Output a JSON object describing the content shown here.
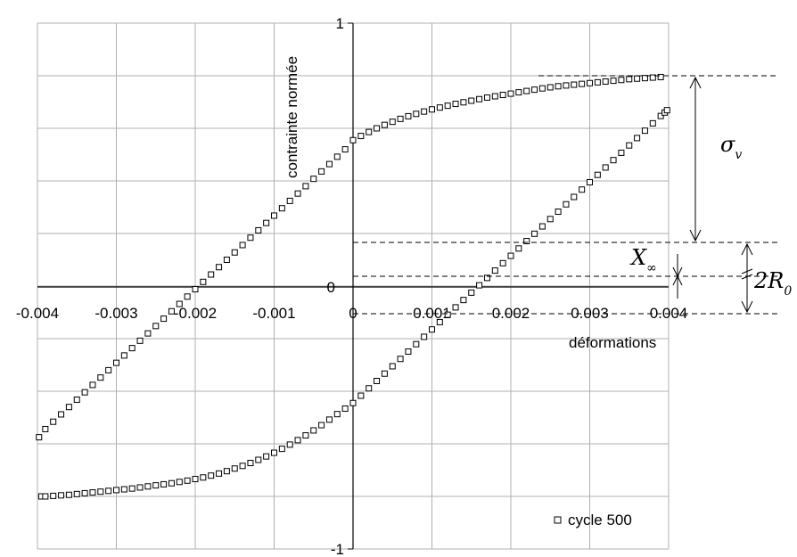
{
  "chart_data": {
    "type": "scatter",
    "xlim": [
      -0.004,
      0.004
    ],
    "ylim": [
      -1,
      1
    ],
    "grid": true,
    "legend_position": "bottom-right",
    "xlabel": "déformations",
    "ylabel": "contrainte normée",
    "x_ticks": [
      "-0.004",
      "-0.003",
      "-0.002",
      "-0.001",
      "0",
      "0.001",
      "0.002",
      "0.003",
      "0.004"
    ],
    "y_ticks": [
      "1",
      "0",
      "-1"
    ],
    "series": [
      {
        "name": "cycle 500",
        "marker": "open-square",
        "points": [
          [
            -0.00395,
            -0.8
          ],
          [
            -0.0039,
            -0.8
          ],
          [
            -0.0038,
            -0.798
          ],
          [
            -0.0037,
            -0.796
          ],
          [
            -0.0036,
            -0.794
          ],
          [
            -0.0035,
            -0.791
          ],
          [
            -0.0034,
            -0.788
          ],
          [
            -0.0033,
            -0.785
          ],
          [
            -0.0032,
            -0.782
          ],
          [
            -0.0031,
            -0.779
          ],
          [
            -0.003,
            -0.776
          ],
          [
            -0.0029,
            -0.773
          ],
          [
            -0.0028,
            -0.77
          ],
          [
            -0.0027,
            -0.766
          ],
          [
            -0.0026,
            -0.762
          ],
          [
            -0.0025,
            -0.758
          ],
          [
            -0.0024,
            -0.754
          ],
          [
            -0.0023,
            -0.75
          ],
          [
            -0.0022,
            -0.745
          ],
          [
            -0.0021,
            -0.74
          ],
          [
            -0.002,
            -0.734
          ],
          [
            -0.0019,
            -0.728
          ],
          [
            -0.0018,
            -0.721
          ],
          [
            -0.0017,
            -0.713
          ],
          [
            -0.0016,
            -0.704
          ],
          [
            -0.0015,
            -0.694
          ],
          [
            -0.0014,
            -0.684
          ],
          [
            -0.0013,
            -0.673
          ],
          [
            -0.0012,
            -0.661
          ],
          [
            -0.0011,
            -0.648
          ],
          [
            -0.001,
            -0.634
          ],
          [
            -0.0009,
            -0.619
          ],
          [
            -0.0008,
            -0.603
          ],
          [
            -0.0007,
            -0.586
          ],
          [
            -0.0006,
            -0.568
          ],
          [
            -0.0005,
            -0.549
          ],
          [
            -0.0004,
            -0.529
          ],
          [
            -0.0003,
            -0.508
          ],
          [
            -0.0002,
            -0.487
          ],
          [
            -0.0001,
            -0.466
          ],
          [
            0.0,
            -0.445
          ],
          [
            0.0001,
            -0.417
          ],
          [
            0.0002,
            -0.389
          ],
          [
            0.0003,
            -0.361
          ],
          [
            0.0004,
            -0.333
          ],
          [
            0.0005,
            -0.305
          ],
          [
            0.0006,
            -0.277
          ],
          [
            0.0007,
            -0.249
          ],
          [
            0.0008,
            -0.221
          ],
          [
            0.0009,
            -0.193
          ],
          [
            0.001,
            -0.165
          ],
          [
            0.0011,
            -0.137
          ],
          [
            0.0012,
            -0.109
          ],
          [
            0.0013,
            -0.081
          ],
          [
            0.0014,
            -0.053
          ],
          [
            0.0015,
            -0.025
          ],
          [
            0.0016,
            0.003
          ],
          [
            0.0017,
            0.031
          ],
          [
            0.0018,
            0.059
          ],
          [
            0.0019,
            0.087
          ],
          [
            0.002,
            0.115
          ],
          [
            0.0021,
            0.143
          ],
          [
            0.0022,
            0.171
          ],
          [
            0.0023,
            0.199
          ],
          [
            0.0024,
            0.227
          ],
          [
            0.0025,
            0.255
          ],
          [
            0.0026,
            0.283
          ],
          [
            0.0027,
            0.311
          ],
          [
            0.0028,
            0.339
          ],
          [
            0.0029,
            0.367
          ],
          [
            0.003,
            0.395
          ],
          [
            0.0031,
            0.423
          ],
          [
            0.0032,
            0.451
          ],
          [
            0.0033,
            0.479
          ],
          [
            0.0034,
            0.507
          ],
          [
            0.0035,
            0.535
          ],
          [
            0.0036,
            0.563
          ],
          [
            0.0037,
            0.591
          ],
          [
            0.0038,
            0.619
          ],
          [
            0.0039,
            0.647
          ],
          [
            0.00395,
            0.66
          ],
          [
            0.00398,
            0.669
          ],
          [
            0.0039,
            0.795
          ],
          [
            0.0038,
            0.793
          ],
          [
            0.0037,
            0.791
          ],
          [
            0.0036,
            0.789
          ],
          [
            0.0035,
            0.787
          ],
          [
            0.0034,
            0.784
          ],
          [
            0.0033,
            0.781
          ],
          [
            0.0032,
            0.778
          ],
          [
            0.0031,
            0.775
          ],
          [
            0.003,
            0.772
          ],
          [
            0.0029,
            0.769
          ],
          [
            0.0028,
            0.766
          ],
          [
            0.0027,
            0.763
          ],
          [
            0.0026,
            0.76
          ],
          [
            0.0025,
            0.756
          ],
          [
            0.0024,
            0.752
          ],
          [
            0.0023,
            0.747
          ],
          [
            0.0022,
            0.742
          ],
          [
            0.0021,
            0.737
          ],
          [
            0.002,
            0.732
          ],
          [
            0.0019,
            0.727
          ],
          [
            0.0018,
            0.722
          ],
          [
            0.0017,
            0.717
          ],
          [
            0.0016,
            0.711
          ],
          [
            0.0015,
            0.705
          ],
          [
            0.0014,
            0.699
          ],
          [
            0.0013,
            0.693
          ],
          [
            0.0012,
            0.686
          ],
          [
            0.0011,
            0.679
          ],
          [
            0.001,
            0.672
          ],
          [
            0.0009,
            0.664
          ],
          [
            0.0008,
            0.655
          ],
          [
            0.0007,
            0.646
          ],
          [
            0.0006,
            0.636
          ],
          [
            0.0005,
            0.625
          ],
          [
            0.0004,
            0.613
          ],
          [
            0.0003,
            0.6
          ],
          [
            0.0002,
            0.586
          ],
          [
            0.0001,
            0.571
          ],
          [
            0.0,
            0.555
          ],
          [
            -0.0001,
            0.52
          ],
          [
            -0.0002,
            0.492
          ],
          [
            -0.0003,
            0.464
          ],
          [
            -0.0004,
            0.436
          ],
          [
            -0.0005,
            0.408
          ],
          [
            -0.0006,
            0.38
          ],
          [
            -0.0007,
            0.352
          ],
          [
            -0.0008,
            0.324
          ],
          [
            -0.0009,
            0.296
          ],
          [
            -0.001,
            0.268
          ],
          [
            -0.0011,
            0.24
          ],
          [
            -0.0012,
            0.212
          ],
          [
            -0.0013,
            0.184
          ],
          [
            -0.0014,
            0.156
          ],
          [
            -0.0015,
            0.128
          ],
          [
            -0.0016,
            0.1
          ],
          [
            -0.0017,
            0.072
          ],
          [
            -0.0018,
            0.044
          ],
          [
            -0.0019,
            0.016
          ],
          [
            -0.002,
            -0.012
          ],
          [
            -0.0021,
            -0.04
          ],
          [
            -0.0022,
            -0.068
          ],
          [
            -0.0023,
            -0.096
          ],
          [
            -0.0024,
            -0.124
          ],
          [
            -0.0025,
            -0.152
          ],
          [
            -0.0026,
            -0.18
          ],
          [
            -0.0027,
            -0.208
          ],
          [
            -0.0028,
            -0.236
          ],
          [
            -0.0029,
            -0.264
          ],
          [
            -0.003,
            -0.292
          ],
          [
            -0.0031,
            -0.32
          ],
          [
            -0.0032,
            -0.348
          ],
          [
            -0.0033,
            -0.376
          ],
          [
            -0.0034,
            -0.404
          ],
          [
            -0.0035,
            -0.432
          ],
          [
            -0.0036,
            -0.46
          ],
          [
            -0.0037,
            -0.488
          ],
          [
            -0.0038,
            -0.516
          ],
          [
            -0.0039,
            -0.544
          ],
          [
            -0.00398,
            -0.575
          ]
        ]
      }
    ],
    "annotations": [
      {
        "symbol": "σ",
        "subscript": "v",
        "from_y": 0.2,
        "to_y": 0.8
      },
      {
        "symbol": "X",
        "subscript": "∞",
        "from_y": 0.05,
        "to_y": 0.2
      },
      {
        "symbol": "2R",
        "subscript": "0",
        "from_y": -0.1,
        "to_y": 0.2
      }
    ]
  },
  "colors": {
    "axis": "#000000",
    "grid": "#b0b0b0",
    "marker": "#000000",
    "background": "#ffffff"
  }
}
